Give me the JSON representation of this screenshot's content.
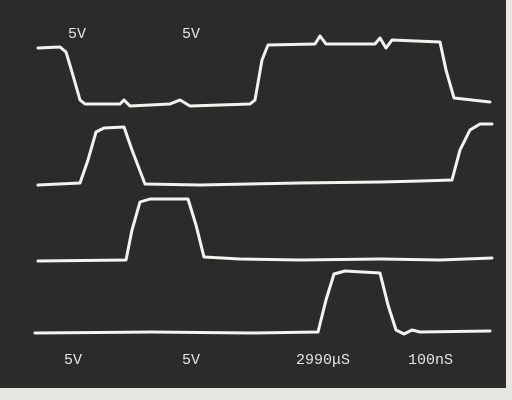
{
  "screen": {
    "top_labels": [
      "5V",
      "5V"
    ],
    "bottom_labels": [
      "5V",
      "5V",
      "2990μS",
      "100nS"
    ]
  }
}
